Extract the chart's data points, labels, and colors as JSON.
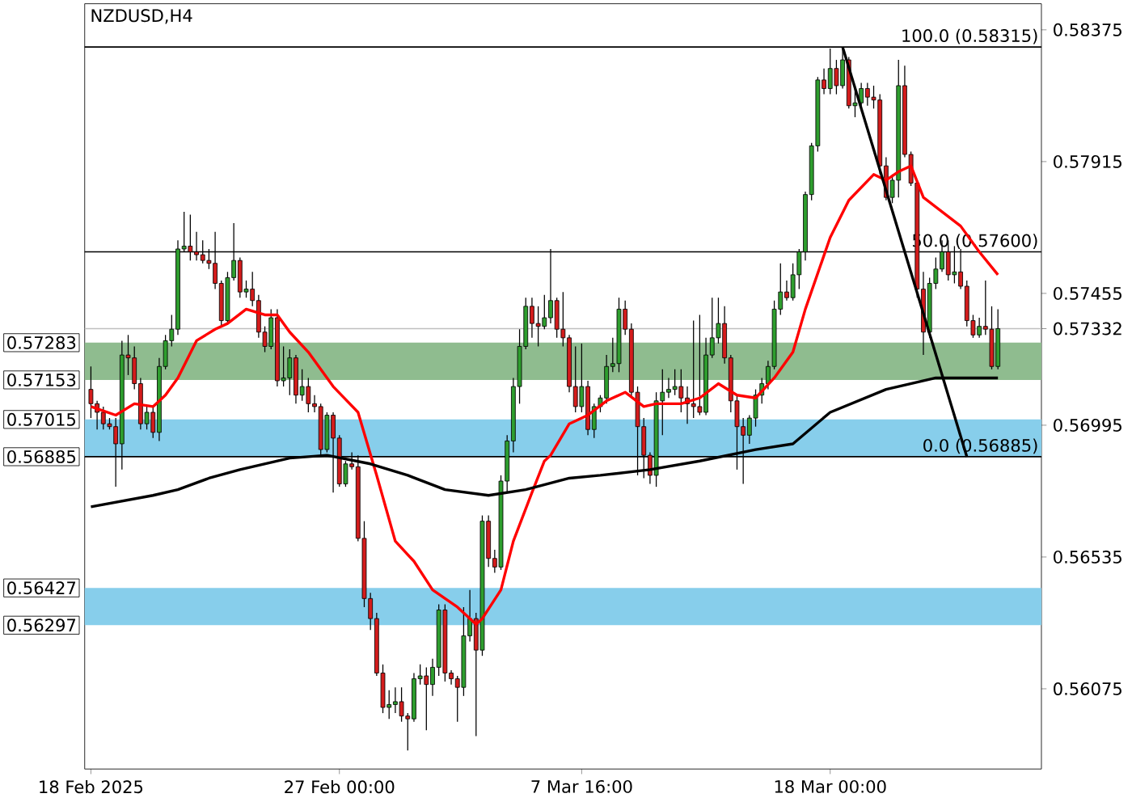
{
  "chart_data": {
    "type": "candlestick",
    "title": "NZDUSD,H4",
    "categories": [
      "18 Feb 2025",
      null,
      null,
      null,
      null,
      null,
      null,
      null,
      null,
      null,
      null,
      null,
      null,
      null,
      null,
      null,
      null,
      null,
      null,
      null,
      null,
      null,
      null,
      null,
      null,
      null,
      null,
      null,
      null,
      null,
      null,
      null,
      null,
      null,
      null,
      null,
      null,
      null,
      null,
      null,
      "27 Feb 00:00",
      null,
      null,
      null,
      null,
      null,
      null,
      null,
      null,
      null,
      null,
      null,
      null,
      null,
      null,
      null,
      null,
      null,
      null,
      null,
      null,
      null,
      null,
      null,
      null,
      null,
      null,
      null,
      null,
      null,
      null,
      null,
      null,
      null,
      null,
      null,
      null,
      null,
      null,
      "7 Mar 16:00",
      null,
      null,
      null,
      null,
      null,
      null,
      null,
      null,
      null,
      null,
      null,
      null,
      null,
      null,
      null,
      null,
      null,
      null,
      null,
      null,
      null,
      null,
      null,
      null,
      null,
      null,
      null,
      null,
      null,
      null,
      null,
      null,
      null,
      null,
      null,
      null,
      null,
      null,
      null,
      "18 Mar 00:00",
      null,
      null,
      null,
      null,
      null,
      null,
      null,
      null,
      null,
      null,
      null,
      null,
      null,
      null,
      null,
      null,
      null,
      null,
      null,
      null,
      null,
      null,
      null,
      null,
      null,
      null,
      null
    ],
    "ohlc": [
      [
        0.5712,
        0.572,
        0.5702,
        0.5707
      ],
      [
        0.5707,
        0.5708,
        0.5698,
        0.5704
      ],
      [
        0.5704,
        0.5706,
        0.5698,
        0.57
      ],
      [
        0.57,
        0.5702,
        0.5698,
        0.5699
      ],
      [
        0.5699,
        0.5702,
        0.5678,
        0.5693
      ],
      [
        0.5693,
        0.5729,
        0.5684,
        0.5724
      ],
      [
        0.5724,
        0.5731,
        0.5717,
        0.5723
      ],
      [
        0.5723,
        0.5727,
        0.5712,
        0.5714
      ],
      [
        0.5714,
        0.5716,
        0.5698,
        0.57
      ],
      [
        0.57,
        0.5706,
        0.5698,
        0.5704
      ],
      [
        0.5704,
        0.5706,
        0.5695,
        0.5697
      ],
      [
        0.5697,
        0.5723,
        0.5694,
        0.572
      ],
      [
        0.572,
        0.5731,
        0.5719,
        0.5729
      ],
      [
        0.5729,
        0.5738,
        0.5727,
        0.5733
      ],
      [
        0.5733,
        0.5764,
        0.5731,
        0.5761
      ],
      [
        0.5761,
        0.5774,
        0.576,
        0.5762
      ],
      [
        0.5762,
        0.5773,
        0.5757,
        0.576
      ],
      [
        0.576,
        0.5767,
        0.5757,
        0.5759
      ],
      [
        0.5759,
        0.5764,
        0.5756,
        0.5757
      ],
      [
        0.5757,
        0.5761,
        0.5754,
        0.5756
      ],
      [
        0.5756,
        0.5767,
        0.5747,
        0.5749
      ],
      [
        0.5749,
        0.575,
        0.5734,
        0.5736
      ],
      [
        0.5736,
        0.5753,
        0.5735,
        0.5751
      ],
      [
        0.5751,
        0.577,
        0.575,
        0.5757
      ],
      [
        0.5757,
        0.5758,
        0.5744,
        0.5746
      ],
      [
        0.5746,
        0.575,
        0.5744,
        0.5747
      ],
      [
        0.5747,
        0.5753,
        0.5741,
        0.5743
      ],
      [
        0.5743,
        0.5745,
        0.573,
        0.5732
      ],
      [
        0.5732,
        0.5734,
        0.5725,
        0.5727
      ],
      [
        0.5727,
        0.574,
        0.5726,
        0.5737
      ],
      [
        0.5737,
        0.574,
        0.5713,
        0.5715
      ],
      [
        0.5715,
        0.5727,
        0.5713,
        0.5716
      ],
      [
        0.5716,
        0.5726,
        0.571,
        0.5723
      ],
      [
        0.5723,
        0.5724,
        0.5707,
        0.571
      ],
      [
        0.571,
        0.5719,
        0.5708,
        0.5713
      ],
      [
        0.5713,
        0.5716,
        0.5704,
        0.5707
      ],
      [
        0.5707,
        0.571,
        0.5704,
        0.5706
      ],
      [
        0.5706,
        0.5707,
        0.5689,
        0.5691
      ],
      [
        0.5691,
        0.5704,
        0.569,
        0.5703
      ],
      [
        0.5703,
        0.5704,
        0.5676,
        0.5695
      ],
      [
        0.5695,
        0.5696,
        0.5678,
        0.5679
      ],
      [
        0.5679,
        0.5687,
        0.5678,
        0.5686
      ],
      [
        0.5686,
        0.569,
        0.5684,
        0.5685
      ],
      [
        0.5685,
        0.5689,
        0.5659,
        0.566
      ],
      [
        0.566,
        0.5666,
        0.5636,
        0.5639
      ],
      [
        0.5639,
        0.5641,
        0.5628,
        0.5632
      ],
      [
        0.5632,
        0.5634,
        0.5612,
        0.5613
      ],
      [
        0.5613,
        0.5616,
        0.5599,
        0.5601
      ],
      [
        0.5601,
        0.5607,
        0.5597,
        0.5602
      ],
      [
        0.5602,
        0.5608,
        0.5599,
        0.5603
      ],
      [
        0.5603,
        0.5608,
        0.5596,
        0.5598
      ],
      [
        0.5598,
        0.5599,
        0.5586,
        0.5597
      ],
      [
        0.5597,
        0.5613,
        0.5596,
        0.5611
      ],
      [
        0.5611,
        0.5616,
        0.5609,
        0.5612
      ],
      [
        0.5612,
        0.5615,
        0.5593,
        0.5609
      ],
      [
        0.5609,
        0.5618,
        0.5605,
        0.5615
      ],
      [
        0.5615,
        0.5637,
        0.5612,
        0.5635
      ],
      [
        0.5635,
        0.5637,
        0.561,
        0.5613
      ],
      [
        0.5613,
        0.5614,
        0.5609,
        0.5611
      ],
      [
        0.5611,
        0.5612,
        0.5596,
        0.5608
      ],
      [
        0.5608,
        0.5636,
        0.5605,
        0.5626
      ],
      [
        0.5626,
        0.5642,
        0.5624,
        0.5632
      ],
      [
        0.5632,
        0.5634,
        0.5591,
        0.5621
      ],
      [
        0.5621,
        0.5668,
        0.5619,
        0.5666
      ],
      [
        0.5666,
        0.5668,
        0.565,
        0.5653
      ],
      [
        0.5653,
        0.5656,
        0.5648,
        0.565
      ],
      [
        0.565,
        0.5682,
        0.5649,
        0.568
      ],
      [
        0.568,
        0.5696,
        0.5676,
        0.5694
      ],
      [
        0.5694,
        0.5716,
        0.569,
        0.5713
      ],
      [
        0.5713,
        0.5733,
        0.5707,
        0.5727
      ],
      [
        0.5727,
        0.5744,
        0.5726,
        0.5741
      ],
      [
        0.5741,
        0.5744,
        0.573,
        0.5735
      ],
      [
        0.5735,
        0.5741,
        0.5727,
        0.5734
      ],
      [
        0.5734,
        0.5745,
        0.5733,
        0.5737
      ],
      [
        0.5737,
        0.5761,
        0.5735,
        0.5743
      ],
      [
        0.5743,
        0.5744,
        0.573,
        0.5733
      ],
      [
        0.5733,
        0.5746,
        0.5727,
        0.573
      ],
      [
        0.573,
        0.5731,
        0.5711,
        0.5713
      ],
      [
        0.5713,
        0.5727,
        0.5704,
        0.5706
      ],
      [
        0.5706,
        0.5728,
        0.5704,
        0.5713
      ],
      [
        0.5713,
        0.5715,
        0.5696,
        0.5698
      ],
      [
        0.5698,
        0.5707,
        0.5695,
        0.5706
      ],
      [
        0.5706,
        0.571,
        0.5704,
        0.5709
      ],
      [
        0.5709,
        0.5724,
        0.5707,
        0.572
      ],
      [
        0.572,
        0.573,
        0.5718,
        0.5721
      ],
      [
        0.5721,
        0.5744,
        0.5718,
        0.574
      ],
      [
        0.574,
        0.5743,
        0.5731,
        0.5733
      ],
      [
        0.5733,
        0.5735,
        0.5709,
        0.5711
      ],
      [
        0.5711,
        0.5713,
        0.5682,
        0.5699
      ],
      [
        0.5699,
        0.5702,
        0.5681,
        0.5689
      ],
      [
        0.5689,
        0.569,
        0.5679,
        0.5682
      ],
      [
        0.5682,
        0.5711,
        0.5678,
        0.5708
      ],
      [
        0.5708,
        0.5719,
        0.5696,
        0.5711
      ],
      [
        0.5711,
        0.5716,
        0.5709,
        0.5712
      ],
      [
        0.5712,
        0.5719,
        0.571,
        0.5713
      ],
      [
        0.5713,
        0.5719,
        0.5704,
        0.5709
      ],
      [
        0.5709,
        0.5713,
        0.57,
        0.5707
      ],
      [
        0.5707,
        0.5736,
        0.5702,
        0.5706
      ],
      [
        0.5706,
        0.5738,
        0.5703,
        0.5704
      ],
      [
        0.5704,
        0.573,
        0.5703,
        0.5724
      ],
      [
        0.5724,
        0.5744,
        0.5723,
        0.573
      ],
      [
        0.573,
        0.5744,
        0.5728,
        0.5735
      ],
      [
        0.5735,
        0.5741,
        0.5721,
        0.5723
      ],
      [
        0.5723,
        0.5724,
        0.5704,
        0.5708
      ],
      [
        0.5708,
        0.571,
        0.5684,
        0.5699
      ],
      [
        0.5699,
        0.5702,
        0.5679,
        0.5696
      ],
      [
        0.5696,
        0.5703,
        0.5693,
        0.5702
      ],
      [
        0.5702,
        0.5712,
        0.5699,
        0.571
      ],
      [
        0.571,
        0.5716,
        0.5707,
        0.5714
      ],
      [
        0.5714,
        0.5722,
        0.5712,
        0.572
      ],
      [
        0.572,
        0.5743,
        0.5719,
        0.574
      ],
      [
        0.574,
        0.5756,
        0.5738,
        0.5746
      ],
      [
        0.5746,
        0.575,
        0.5743,
        0.5744
      ],
      [
        0.5744,
        0.5756,
        0.5743,
        0.5752
      ],
      [
        0.5752,
        0.5761,
        0.5747,
        0.576
      ],
      [
        0.576,
        0.5781,
        0.5757,
        0.578
      ],
      [
        0.578,
        0.5798,
        0.5778,
        0.5797
      ],
      [
        0.5797,
        0.5821,
        0.5795,
        0.582
      ],
      [
        0.582,
        0.5824,
        0.5815,
        0.5817
      ],
      [
        0.5817,
        0.5831,
        0.5815,
        0.5824
      ],
      [
        0.5824,
        0.5827,
        0.5815,
        0.5818
      ],
      [
        0.5818,
        0.58315,
        0.5817,
        0.5827
      ],
      [
        0.5827,
        0.5828,
        0.581,
        0.5811
      ],
      [
        0.5811,
        0.5818,
        0.5807,
        0.5812
      ],
      [
        0.5812,
        0.5819,
        0.5811,
        0.5817
      ],
      [
        0.5817,
        0.5819,
        0.5811,
        0.5814
      ],
      [
        0.5814,
        0.5818,
        0.581,
        0.5813
      ],
      [
        0.5813,
        0.5815,
        0.5787,
        0.579
      ],
      [
        0.579,
        0.5793,
        0.5778,
        0.5779
      ],
      [
        0.5779,
        0.5787,
        0.5777,
        0.5785
      ],
      [
        0.5785,
        0.5827,
        0.5779,
        0.5818
      ],
      [
        0.5818,
        0.5825,
        0.5793,
        0.5794
      ],
      [
        0.5794,
        0.5795,
        0.5783,
        0.5784
      ],
      [
        0.5784,
        0.5785,
        0.5744,
        0.5747
      ],
      [
        0.5747,
        0.5753,
        0.5724,
        0.5732
      ],
      [
        0.5732,
        0.5751,
        0.573,
        0.5749
      ],
      [
        0.5749,
        0.5758,
        0.5747,
        0.5754
      ],
      [
        0.5754,
        0.5764,
        0.5753,
        0.576
      ],
      [
        0.576,
        0.5764,
        0.575,
        0.5752
      ],
      [
        0.5752,
        0.5762,
        0.5749,
        0.5753
      ],
      [
        0.5753,
        0.5761,
        0.5747,
        0.5748
      ],
      [
        0.5748,
        0.575,
        0.5734,
        0.5736
      ],
      [
        0.5736,
        0.5738,
        0.573,
        0.5731
      ],
      [
        0.5731,
        0.5737,
        0.573,
        0.5734
      ],
      [
        0.5734,
        0.575,
        0.5731,
        0.5733
      ],
      [
        0.5733,
        0.5741,
        0.5719,
        0.572
      ],
      [
        0.572,
        0.574,
        0.5719,
        0.57332
      ]
    ],
    "series": [
      {
        "type": "line",
        "color": "#ff0000",
        "values": [
          0.5706,
          null,
          null,
          null,
          0.5703,
          null,
          null,
          0.5707,
          null,
          null,
          0.5706,
          null,
          0.571,
          null,
          0.5716,
          null,
          null,
          0.5729,
          null,
          null,
          0.5733,
          null,
          0.5735,
          null,
          null,
          0.574,
          null,
          null,
          0.5738,
          null,
          0.5738,
          null,
          0.5732,
          null,
          null,
          0.5725,
          null,
          null,
          null,
          0.5713,
          null,
          null,
          null,
          0.5704,
          null,
          null,
          0.5682,
          null,
          null,
          0.5659,
          null,
          null,
          0.5652,
          null,
          null,
          0.5642,
          null,
          null,
          null,
          0.5636,
          null,
          null,
          0.563,
          0.5632,
          null,
          null,
          0.5642,
          null,
          0.5659,
          null,
          null,
          0.5676,
          null,
          0.5687,
          0.5689,
          null,
          null,
          0.57,
          null,
          null,
          0.5703,
          null,
          null,
          0.5708,
          null,
          null,
          0.5711,
          null,
          null,
          0.5706,
          null,
          0.5707,
          null,
          null,
          null,
          0.5707,
          null,
          null,
          0.5709,
          null,
          null,
          0.5714,
          null,
          null,
          0.571,
          null,
          null,
          0.5709,
          null,
          null,
          0.5716,
          null,
          null,
          0.5725,
          null,
          0.574,
          null,
          null,
          null,
          0.5765,
          null,
          null,
          0.5778,
          null,
          null,
          null,
          0.5787,
          null,
          0.5785,
          null,
          0.5788,
          null,
          0.579,
          null,
          0.5779,
          null,
          null,
          0.5774,
          null,
          null,
          0.5769,
          null,
          null,
          0.576,
          null,
          null,
          0.5752
        ]
      },
      {
        "type": "line",
        "color": "#000000",
        "values": [
          0.5671,
          null,
          null,
          null,
          null,
          null,
          null,
          null,
          null,
          null,
          0.5675,
          null,
          null,
          null,
          0.5677,
          null,
          null,
          null,
          null,
          0.5681,
          null,
          null,
          null,
          null,
          0.5684,
          null,
          null,
          null,
          null,
          null,
          null,
          null,
          0.5688,
          null,
          null,
          null,
          null,
          null,
          0.5689,
          null,
          null,
          null,
          null,
          null,
          null,
          0.5686,
          null,
          null,
          null,
          null,
          null,
          0.5682,
          null,
          null,
          null,
          null,
          null,
          0.5677,
          null,
          null,
          null,
          null,
          null,
          null,
          0.5675,
          null,
          null,
          null,
          null,
          null,
          0.5677,
          null,
          null,
          null,
          null,
          null,
          null,
          0.5681,
          null,
          null,
          null,
          null,
          0.5682,
          null,
          null,
          null,
          null,
          null,
          null,
          null,
          0.5684,
          null,
          null,
          null,
          null,
          null,
          null,
          null,
          0.5687,
          null,
          null,
          null,
          null,
          null,
          null,
          null,
          null,
          0.5691,
          null,
          null,
          null,
          null,
          null,
          0.5693,
          null,
          null,
          null,
          null,
          null,
          0.5704,
          null,
          null,
          null,
          null,
          null,
          null,
          null,
          null,
          0.5712,
          null,
          null,
          null,
          null,
          null,
          null,
          null,
          0.5716,
          null,
          null,
          null,
          null,
          null,
          null,
          null,
          null,
          null,
          0.5716
        ]
      },
      {
        "type": "line",
        "color": "#000000",
        "values": [
          null,
          null,
          null,
          null,
          null,
          null,
          null,
          null,
          null,
          null,
          null,
          null,
          null,
          null,
          null,
          null,
          null,
          null,
          null,
          null,
          null,
          null,
          null,
          null,
          null,
          null,
          null,
          null,
          null,
          null,
          null,
          null,
          null,
          null,
          null,
          null,
          null,
          null,
          null,
          null,
          null,
          null,
          null,
          null,
          null,
          null,
          null,
          null,
          null,
          null,
          null,
          null,
          null,
          null,
          null,
          null,
          null,
          null,
          null,
          null,
          null,
          null,
          null,
          null,
          null,
          null,
          null,
          null,
          null,
          null,
          null,
          null,
          null,
          null,
          null,
          null,
          null,
          null,
          null,
          null,
          null,
          null,
          null,
          null,
          null,
          null,
          null,
          null,
          null,
          null,
          null,
          null,
          null,
          null,
          null,
          null,
          null,
          null,
          null,
          null,
          null,
          null,
          null,
          null,
          null,
          null,
          null,
          null,
          null,
          null,
          null,
          null,
          null,
          null,
          null,
          null,
          null,
          null,
          null,
          null,
          null,
          0.58315,
          null,
          null,
          null,
          null,
          null,
          null,
          null,
          null,
          null,
          null,
          null,
          null,
          null,
          null,
          null,
          null,
          null,
          null,
          null,
          0.56885,
          null,
          null,
          null,
          null,
          null
        ]
      }
    ],
    "ylim": [
      0.55795,
      0.58466
    ],
    "yticks": [
      0.56075,
      0.56535,
      0.56995,
      0.57332,
      0.57455,
      0.57915,
      0.58375
    ],
    "bands": [
      {
        "axis": "y",
        "from": 0.57153,
        "to": 0.57283,
        "color": "#8fbc8f"
      },
      {
        "axis": "y",
        "from": 0.56885,
        "to": 0.57015,
        "color": "#87ceeb"
      },
      {
        "axis": "y",
        "from": 0.56297,
        "to": 0.56427,
        "color": "#87ceeb"
      }
    ],
    "ref_lines": [
      {
        "axis": "y",
        "value": 0.58315,
        "label": "100.0 (0.58315)",
        "color": "#000000"
      },
      {
        "axis": "y",
        "value": 0.576,
        "label": "50.0 (0.57600)",
        "color": "#000000"
      },
      {
        "axis": "y",
        "value": 0.56885,
        "label": "0.0 (0.56885)",
        "color": "#000000"
      },
      {
        "axis": "y",
        "value": 0.57332,
        "color": "#c0c0c0"
      }
    ],
    "annotations": [
      "0.57283",
      "0.57153",
      "0.57015",
      "0.56885",
      "0.56427",
      "0.56297"
    ]
  }
}
